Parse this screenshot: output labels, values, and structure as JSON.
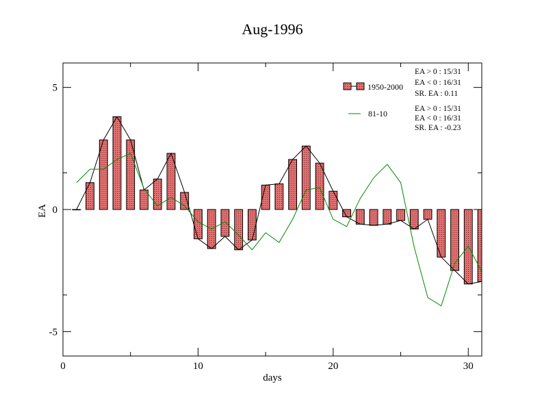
{
  "chart_data": {
    "type": "bar",
    "title": "Aug-1996",
    "xlabel": "days",
    "ylabel": "EA",
    "xlim": [
      0,
      31
    ],
    "ylim": [
      -6,
      6
    ],
    "xticks": [
      0,
      10,
      20,
      30
    ],
    "yticks": [
      -5,
      0,
      5
    ],
    "grid": false,
    "legend_position": "top-right",
    "x": [
      1,
      2,
      3,
      4,
      5,
      6,
      7,
      8,
      9,
      10,
      11,
      12,
      13,
      14,
      15,
      16,
      17,
      18,
      19,
      20,
      21,
      22,
      23,
      24,
      25,
      26,
      27,
      28,
      29,
      30,
      31
    ],
    "series": [
      {
        "name": "1950-2000",
        "kind": "bar",
        "fill_color": "#e07070",
        "values": [
          0.0,
          1.1,
          2.85,
          3.8,
          2.85,
          0.8,
          1.25,
          2.3,
          0.7,
          -1.2,
          -1.6,
          -1.1,
          -1.65,
          -1.25,
          1.0,
          1.05,
          2.05,
          2.6,
          1.9,
          0.75,
          -0.3,
          -0.6,
          -0.65,
          -0.6,
          -0.45,
          -0.8,
          -0.4,
          -1.95,
          -2.5,
          -3.05,
          -2.95
        ],
        "stats": [
          "EA > 0 : 15/31",
          "EA < 0 : 16/31",
          "SR. EA :  0.11"
        ]
      },
      {
        "name": "81-10",
        "kind": "line",
        "color": "#008800",
        "values": [
          1.1,
          1.65,
          1.65,
          2.05,
          2.3,
          0.85,
          0.15,
          0.5,
          0.15,
          -0.5,
          -0.8,
          -0.5,
          -1.05,
          -1.65,
          -0.95,
          -1.35,
          -0.4,
          0.8,
          0.9,
          -0.4,
          -0.7,
          0.45,
          1.3,
          1.85,
          1.1,
          -1.55,
          -3.6,
          -3.95,
          -2.2,
          -1.5,
          -2.55
        ],
        "stats": [
          "EA > 0 : 15/31",
          "EA < 0 : 16/31",
          "SR. EA : -0.23"
        ]
      }
    ]
  }
}
